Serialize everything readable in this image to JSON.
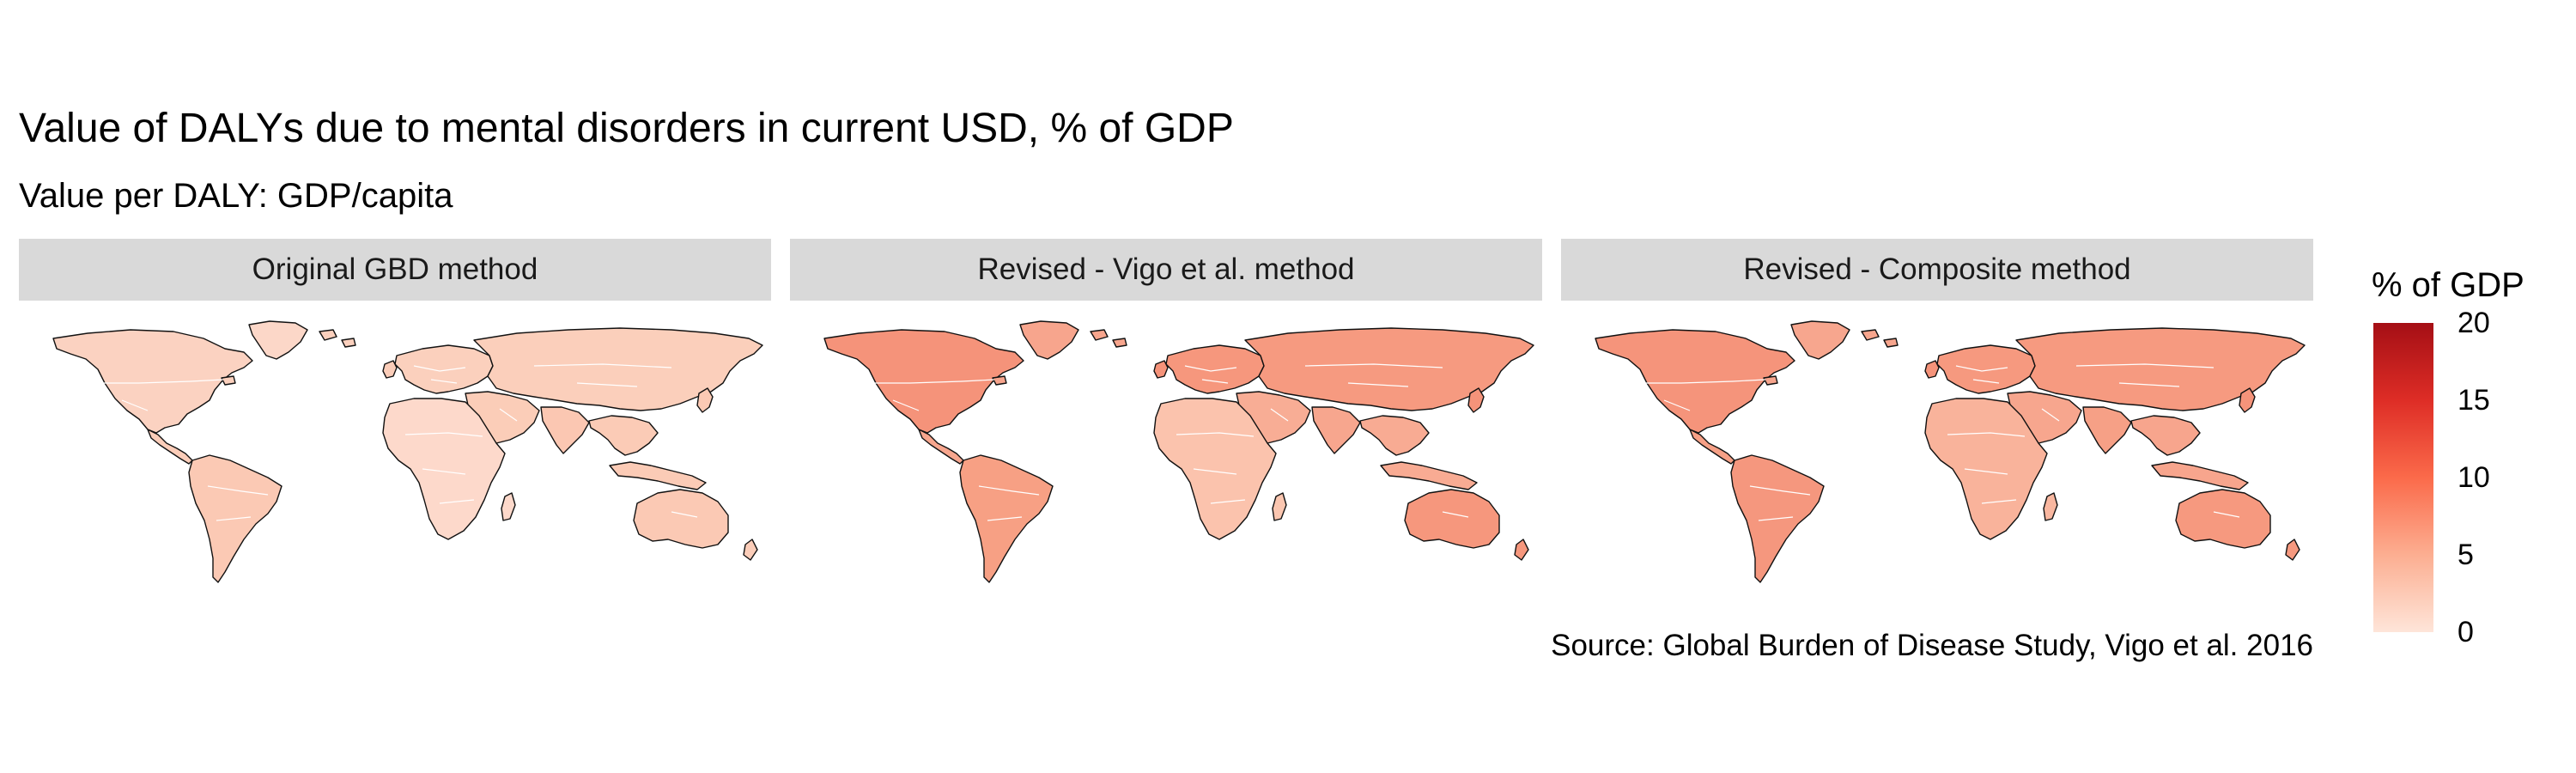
{
  "title": "Value of DALYs due to mental disorders in current USD, % of GDP",
  "subtitle": "Value per DALY: GDP/capita",
  "panels": [
    {
      "label": "Original GBD method",
      "fills": {
        "north_america": "#fbd2c1",
        "greenland": "#fcd7c8",
        "central_america": "#fbcdb9",
        "south_america": "#fbc9b4",
        "europe": "#fbd0bd",
        "russia_asia": "#fbcfbb",
        "middle_east": "#fbcdb8",
        "africa": "#fdd9cb",
        "south_asia": "#fbc7b2",
        "southeast_asia": "#fbcbb6",
        "australia": "#fbc9b4",
        "japan": "#fbc9b4",
        "uk": "#fbcdb9",
        "madagascar": "#fdd9cb",
        "indonesia": "#fbcbb6",
        "new_zealand": "#fbcdb9",
        "islands": "#fbd0bd"
      }
    },
    {
      "label": "Revised - Vigo et al. method",
      "fills": {
        "north_america": "#f5937a",
        "greenland": "#f7a58d",
        "central_america": "#f7a68e",
        "south_america": "#f7a084",
        "europe": "#f6977d",
        "russia_asia": "#f69a80",
        "middle_east": "#f8ad95",
        "africa": "#fbc3ad",
        "south_asia": "#f7a68e",
        "southeast_asia": "#f8ab93",
        "australia": "#f6977d",
        "japan": "#f5937a",
        "uk": "#f5937a",
        "madagascar": "#fbc6b0",
        "indonesia": "#f8ab93",
        "new_zealand": "#f6977d",
        "islands": "#f7a58d"
      }
    },
    {
      "label": "Revised - Composite method",
      "fills": {
        "north_america": "#f5947b",
        "greenland": "#f7a68e",
        "central_america": "#f6a086",
        "south_america": "#f5977e",
        "europe": "#f6997f",
        "russia_asia": "#f69a80",
        "middle_east": "#f7a68e",
        "africa": "#f9b39b",
        "south_asia": "#f6a086",
        "southeast_asia": "#f7a58d",
        "australia": "#f6997f",
        "japan": "#f5937a",
        "uk": "#f5937a",
        "madagascar": "#f9b7a0",
        "indonesia": "#f7a58d",
        "new_zealand": "#f6997f",
        "islands": "#f7a58d"
      }
    }
  ],
  "source": "Source: Global Burden of Disease Study, Vigo et al. 2016",
  "legend": {
    "title": "% of GDP",
    "min": 0,
    "max": 20,
    "ticks": [
      "0",
      "5",
      "10",
      "15",
      "20"
    ],
    "colors": [
      "#fee5d9",
      "#fcae91",
      "#fb6a4a",
      "#de2d26",
      "#a50f15"
    ]
  }
}
